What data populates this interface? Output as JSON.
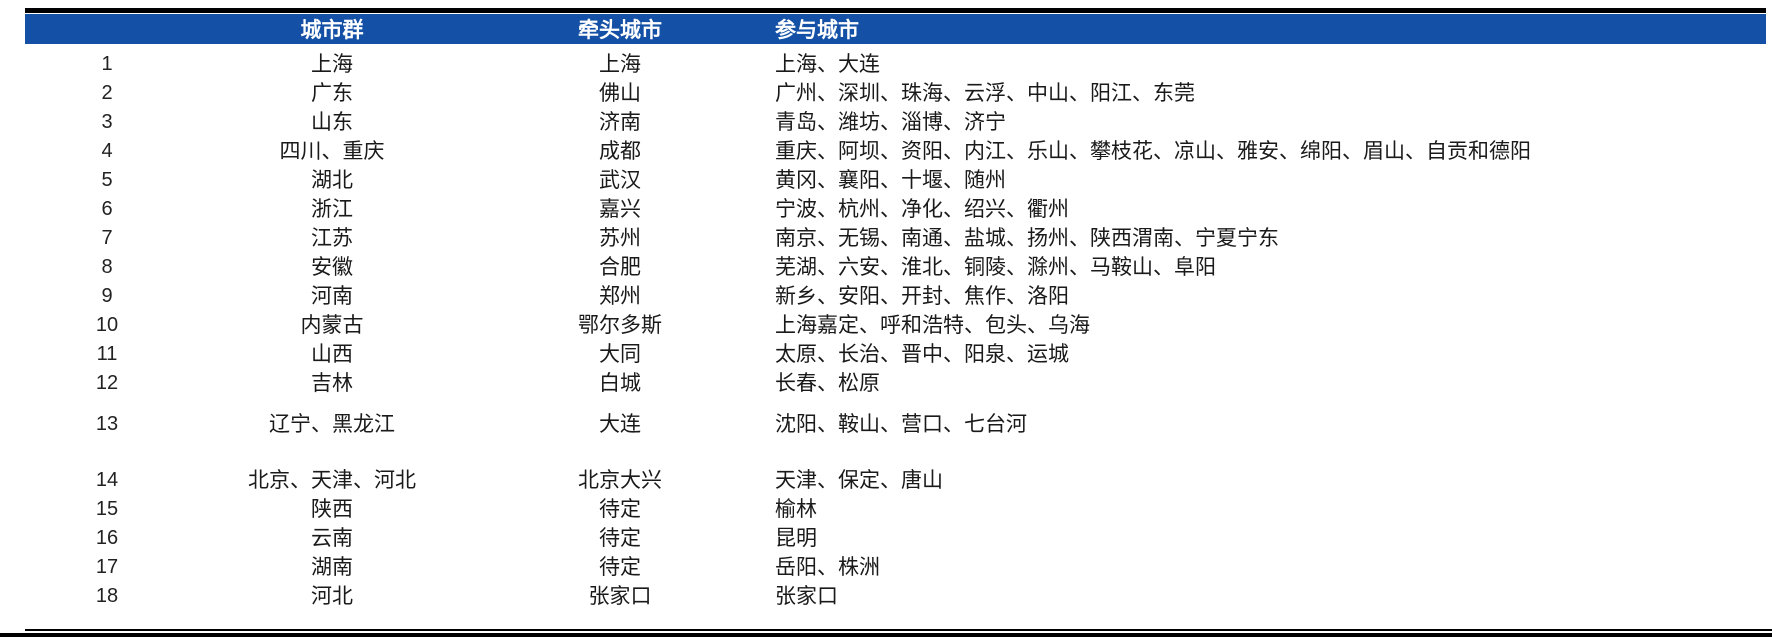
{
  "colors": {
    "header_bg": "#1450A5",
    "header_text": "#FFFFFF",
    "rule": "#000000"
  },
  "table": {
    "columns": {
      "cluster": "城市群",
      "lead": "牵头城市",
      "participants": "参与城市"
    },
    "rows": [
      {
        "num": "1",
        "cluster": "上海",
        "lead": "上海",
        "participants": "上海、大连"
      },
      {
        "num": "2",
        "cluster": "广东",
        "lead": "佛山",
        "participants": "广州、深圳、珠海、云浮、中山、阳江、东莞"
      },
      {
        "num": "3",
        "cluster": "山东",
        "lead": "济南",
        "participants": "青岛、潍坊、淄博、济宁"
      },
      {
        "num": "4",
        "cluster": "四川、重庆",
        "lead": "成都",
        "participants": "重庆、阿坝、资阳、内江、乐山、攀枝花、凉山、雅安、绵阳、眉山、自贡和德阳"
      },
      {
        "num": "5",
        "cluster": "湖北",
        "lead": "武汉",
        "participants": "黄冈、襄阳、十堰、随州"
      },
      {
        "num": "6",
        "cluster": "浙江",
        "lead": "嘉兴",
        "participants": "宁波、杭州、净化、绍兴、衢州"
      },
      {
        "num": "7",
        "cluster": "江苏",
        "lead": "苏州",
        "participants": "南京、无锡、南通、盐城、扬州、陕西渭南、宁夏宁东"
      },
      {
        "num": "8",
        "cluster": "安徽",
        "lead": "合肥",
        "participants": "芜湖、六安、淮北、铜陵、滁州、马鞍山、阜阳"
      },
      {
        "num": "9",
        "cluster": "河南",
        "lead": "郑州",
        "participants": "新乡、安阳、开封、焦作、洛阳"
      },
      {
        "num": "10",
        "cluster": "内蒙古",
        "lead": "鄂尔多斯",
        "participants": "上海嘉定、呼和浩特、包头、乌海"
      },
      {
        "num": "11",
        "cluster": "山西",
        "lead": "大同",
        "participants": "太原、长治、晋中、阳泉、运城"
      },
      {
        "num": "12",
        "cluster": "吉林",
        "lead": "白城",
        "participants": "长春、松原"
      },
      {
        "num": "13",
        "cluster": "辽宁、黑龙江",
        "lead": "大连",
        "participants": "沈阳、鞍山、营口、七台河"
      },
      {
        "num": "14",
        "cluster": "北京、天津、河北",
        "lead": "北京大兴",
        "participants": "天津、保定、唐山"
      },
      {
        "num": "15",
        "cluster": "陕西",
        "lead": "待定",
        "participants": "榆林"
      },
      {
        "num": "16",
        "cluster": "云南",
        "lead": "待定",
        "participants": "昆明"
      },
      {
        "num": "17",
        "cluster": "湖南",
        "lead": "待定",
        "participants": "岳阳、株洲"
      },
      {
        "num": "18",
        "cluster": "河北",
        "lead": "张家口",
        "participants": "张家口"
      }
    ]
  }
}
